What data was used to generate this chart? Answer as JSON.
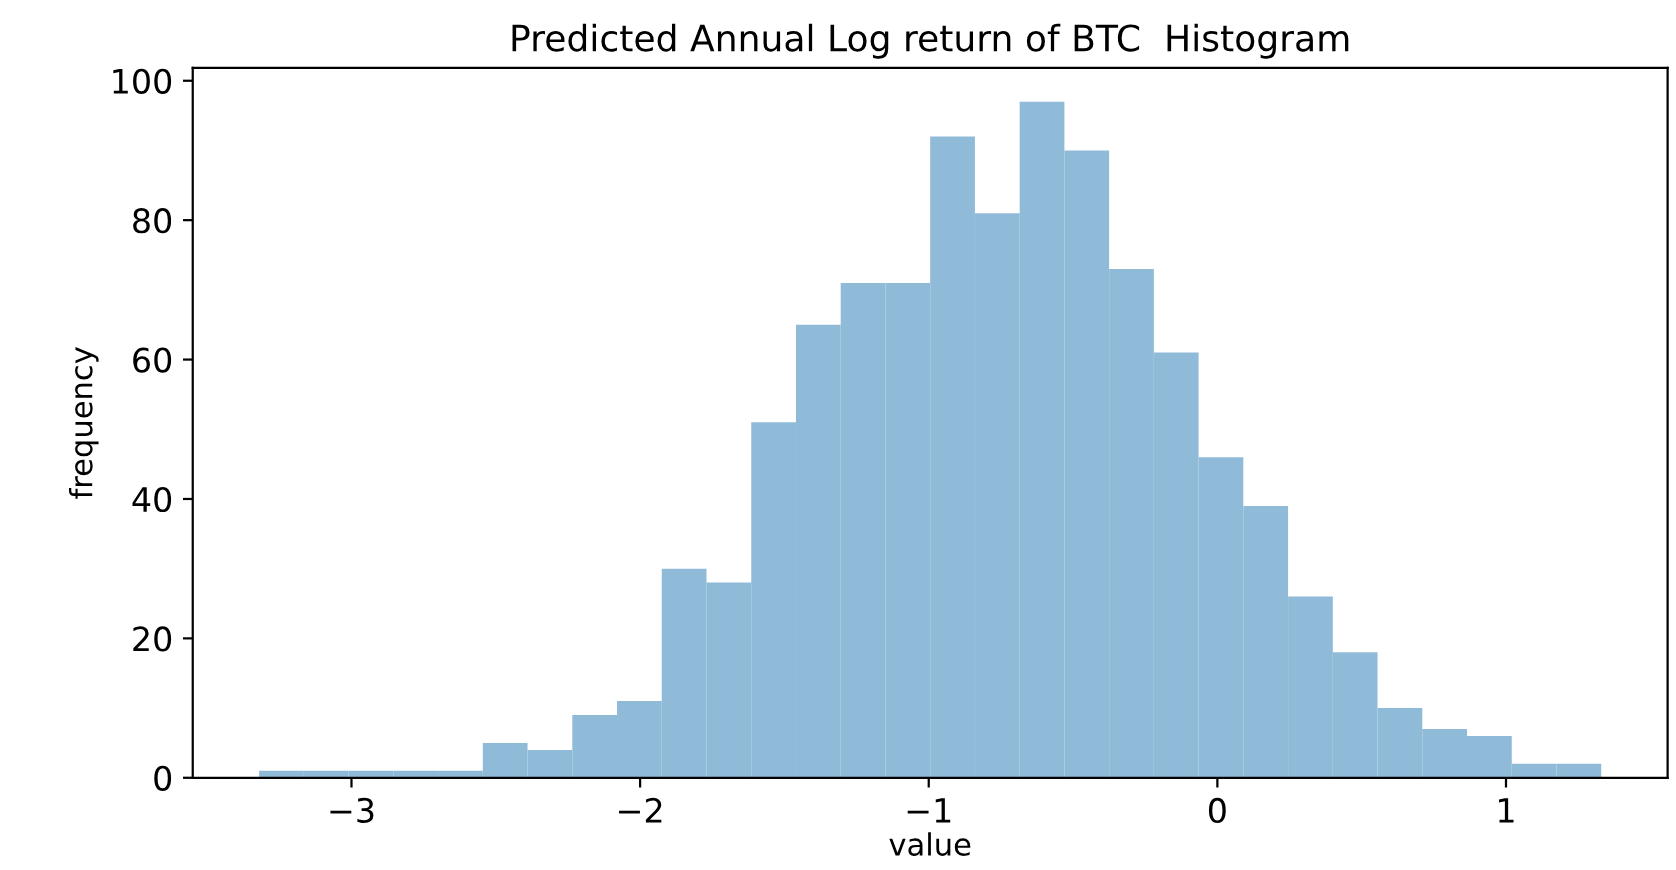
{
  "chart_data": {
    "type": "histogram",
    "title": "Predicted Annual Log return of BTC  Histogram",
    "xlabel": "value",
    "ylabel": "frequency",
    "bins": [
      -3.32,
      -3.165,
      -3.01,
      -2.855,
      -2.7,
      -2.545,
      -2.39,
      -2.235,
      -2.08,
      -1.925,
      -1.77,
      -1.615,
      -1.46,
      -1.305,
      -1.15,
      -0.995,
      -0.84,
      -0.685,
      -0.53,
      -0.375,
      -0.22,
      -0.065,
      0.09,
      0.245,
      0.4,
      0.555,
      0.71,
      0.865,
      1.02,
      1.175,
      1.33
    ],
    "values": [
      1,
      1,
      1,
      1,
      1,
      5,
      4,
      9,
      11,
      30,
      28,
      51,
      65,
      71,
      71,
      92,
      81,
      97,
      90,
      73,
      61,
      46,
      39,
      26,
      18,
      10,
      7,
      6,
      2,
      2
    ],
    "color": "#8fbbd9",
    "xlim": [
      -3.55,
      1.56
    ],
    "ylim": [
      0,
      101.85
    ],
    "xticks": [
      {
        "value": -3,
        "label": "−3"
      },
      {
        "value": -2,
        "label": "−2"
      },
      {
        "value": -1,
        "label": "−1"
      },
      0,
      1
    ],
    "yticks": [
      0,
      20,
      40,
      60,
      80,
      100
    ],
    "grid": false
  }
}
